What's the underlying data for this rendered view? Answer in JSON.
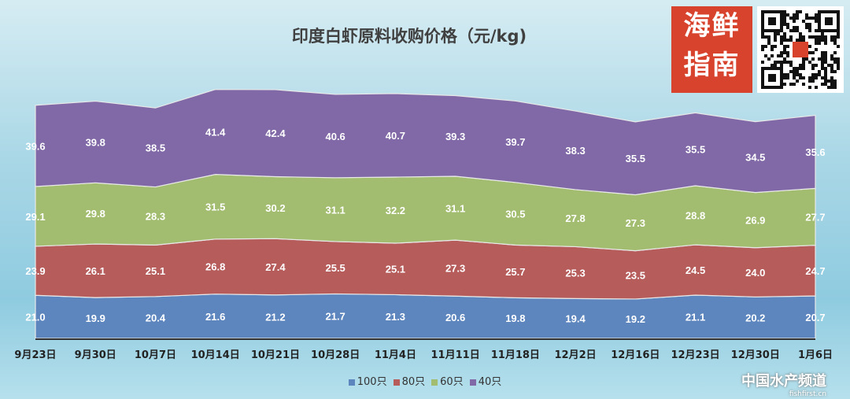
{
  "logo": {
    "text": "海鲜指南"
  },
  "watermark": {
    "name": "中国水产频道",
    "site": "fishfirst.cn"
  },
  "chart_data": {
    "type": "area",
    "stacked": true,
    "title": "印度白虾原料收购价格（元/kg)",
    "xlabel": "",
    "ylabel": "",
    "ylim": [
      0,
      130
    ],
    "legend_position": "bottom",
    "categories": [
      "9月23日",
      "9月30日",
      "10月7日",
      "10月14日",
      "10月21日",
      "10月28日",
      "11月4日",
      "11月11日",
      "11月18日",
      "12月2日",
      "12月16日",
      "12月23日",
      "12月30日",
      "1月6日"
    ],
    "series": [
      {
        "name": "100只",
        "color": "#5d86bf",
        "values": [
          21.0,
          19.9,
          20.4,
          21.6,
          21.2,
          21.7,
          21.3,
          20.6,
          19.8,
          19.4,
          19.2,
          21.1,
          20.2,
          20.7
        ]
      },
      {
        "name": "80只",
        "color": "#b65d5c",
        "values": [
          23.9,
          26.1,
          25.1,
          26.8,
          27.4,
          25.5,
          25.1,
          27.3,
          25.7,
          25.3,
          23.5,
          24.5,
          24.0,
          24.7
        ]
      },
      {
        "name": "60只",
        "color": "#a2bd6f",
        "values": [
          29.1,
          29.8,
          28.3,
          31.5,
          30.2,
          31.1,
          32.2,
          31.1,
          30.5,
          27.8,
          27.3,
          28.8,
          26.9,
          27.7
        ]
      },
      {
        "name": "40只",
        "color": "#8069a6",
        "values": [
          39.6,
          39.8,
          38.5,
          41.4,
          42.4,
          40.6,
          40.7,
          39.3,
          39.7,
          38.3,
          35.5,
          35.5,
          34.5,
          35.6
        ]
      }
    ]
  }
}
